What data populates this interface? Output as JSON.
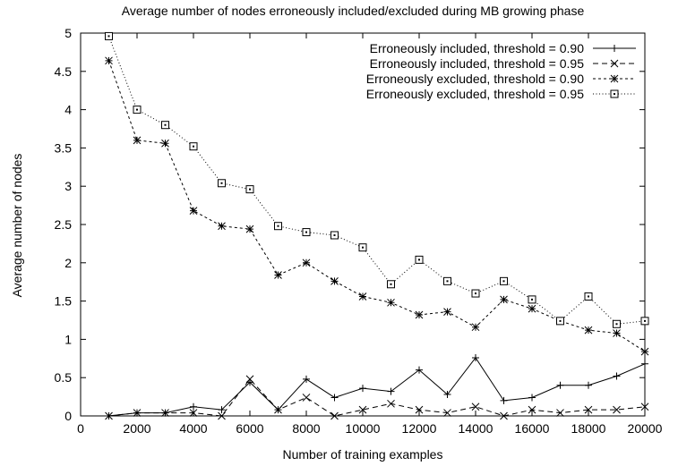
{
  "chart_data": {
    "type": "line",
    "title": "Average number of nodes erroneously included/excluded during MB growing phase",
    "xlabel": "Number of training examples",
    "ylabel": "Average number of nodes",
    "xlim": [
      0,
      20000
    ],
    "ylim": [
      0,
      5
    ],
    "xticks": [
      0,
      2000,
      4000,
      6000,
      8000,
      10000,
      12000,
      14000,
      16000,
      18000,
      20000
    ],
    "yticks": [
      "0",
      "0.5",
      "1",
      "1.5",
      "2",
      "2.5",
      "3",
      "3.5",
      "4",
      "4.5",
      "5"
    ],
    "grid": false,
    "legend_position": "top-right",
    "x": [
      1000,
      2000,
      3000,
      4000,
      5000,
      6000,
      7000,
      8000,
      9000,
      10000,
      11000,
      12000,
      13000,
      14000,
      15000,
      16000,
      17000,
      18000,
      19000,
      20000
    ],
    "series": [
      {
        "name": "Erroneously included, threshold = 0.90",
        "line_style": "solid",
        "marker": "plus",
        "values": [
          0.0,
          0.04,
          0.04,
          0.12,
          0.08,
          0.44,
          0.08,
          0.48,
          0.24,
          0.36,
          0.32,
          0.6,
          0.28,
          0.76,
          0.2,
          0.24,
          0.4,
          0.4,
          0.52,
          0.68
        ]
      },
      {
        "name": "Erroneously included, threshold = 0.95",
        "line_style": "dashed",
        "marker": "x",
        "values": [
          0.0,
          0.04,
          0.04,
          0.04,
          0.0,
          0.48,
          0.08,
          0.24,
          0.0,
          0.08,
          0.16,
          0.08,
          0.04,
          0.12,
          0.0,
          0.08,
          0.04,
          0.08,
          0.08,
          0.12
        ]
      },
      {
        "name": "Erroneously excluded, threshold = 0.90",
        "line_style": "short-dashed",
        "marker": "star",
        "values": [
          4.64,
          3.6,
          3.56,
          2.68,
          2.48,
          2.44,
          1.84,
          2.0,
          1.76,
          1.56,
          1.48,
          1.32,
          1.36,
          1.16,
          1.52,
          1.4,
          1.24,
          1.12,
          1.08,
          0.84
        ]
      },
      {
        "name": "Erroneously excluded, threshold = 0.95",
        "line_style": "dotted",
        "marker": "box",
        "values": [
          4.96,
          4.0,
          3.8,
          3.52,
          3.04,
          2.96,
          2.48,
          2.4,
          2.36,
          2.2,
          1.72,
          2.04,
          1.76,
          1.6,
          1.76,
          1.52,
          1.24,
          1.56,
          1.2,
          1.24
        ]
      }
    ]
  }
}
